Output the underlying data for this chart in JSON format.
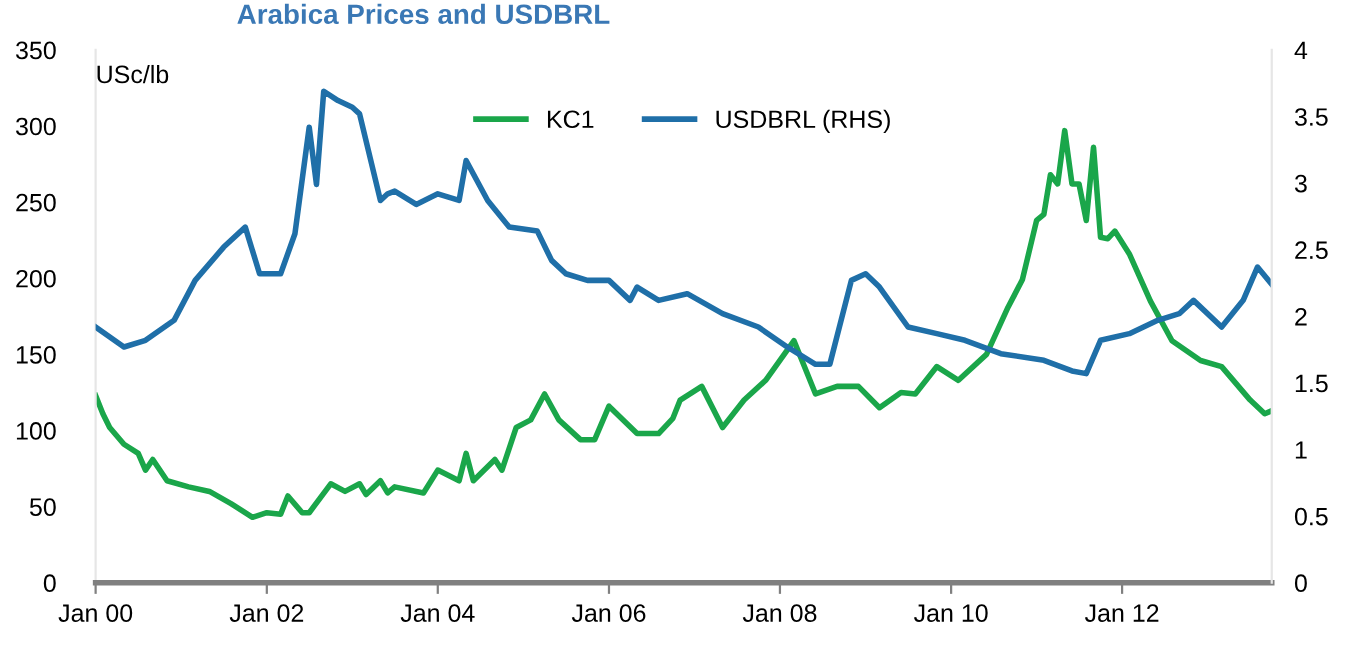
{
  "chart_data": {
    "type": "line",
    "title": "Arabica Prices and USDBRL",
    "ylabel": "USc/lb",
    "xlim": [
      "2000-01",
      "2013-10"
    ],
    "xticks": [
      {
        "value": "2000-01",
        "label": "Jan 00"
      },
      {
        "value": "2002-01",
        "label": "Jan 02"
      },
      {
        "value": "2004-01",
        "label": "Jan 04"
      },
      {
        "value": "2006-01",
        "label": "Jan 06"
      },
      {
        "value": "2008-01",
        "label": "Jan 08"
      },
      {
        "value": "2010-01",
        "label": "Jan 10"
      },
      {
        "value": "2012-01",
        "label": "Jan 12"
      }
    ],
    "ylim": [
      0,
      350
    ],
    "yticks": [
      0,
      50,
      100,
      150,
      200,
      250,
      300,
      350
    ],
    "y2lim": [
      0,
      4
    ],
    "y2ticks": [
      0,
      0.5,
      1,
      1.5,
      2,
      2.5,
      3,
      3.5,
      4
    ],
    "grid": false,
    "legend": "top",
    "marker": "none",
    "line_style": "solid",
    "series": [
      {
        "name": "KC1",
        "color": "#1aa64a",
        "x": [
          "2000-01",
          "2000-02",
          "2000-03",
          "2000-05",
          "2000-07",
          "2000-08",
          "2000-09",
          "2000-11",
          "2001-02",
          "2001-05",
          "2001-08",
          "2001-11",
          "2002-01",
          "2002-03",
          "2002-04",
          "2002-06",
          "2002-07",
          "2002-10",
          "2002-12",
          "2003-02",
          "2003-03",
          "2003-05",
          "2003-06",
          "2003-07",
          "2003-11",
          "2004-01",
          "2004-04",
          "2004-05",
          "2004-06",
          "2004-09",
          "2004-10",
          "2004-12",
          "2005-02",
          "2005-04",
          "2005-06",
          "2005-09",
          "2005-11",
          "2006-01",
          "2006-05",
          "2006-08",
          "2006-10",
          "2006-11",
          "2007-02",
          "2007-05",
          "2007-08",
          "2007-11",
          "2008-03",
          "2008-06",
          "2008-09",
          "2008-12",
          "2009-03",
          "2009-06",
          "2009-08",
          "2009-11",
          "2010-02",
          "2010-06",
          "2010-09",
          "2010-11",
          "2011-01",
          "2011-02",
          "2011-03",
          "2011-04",
          "2011-05",
          "2011-06",
          "2011-07",
          "2011-08",
          "2011-09",
          "2011-10",
          "2011-11",
          "2011-12",
          "2012-02",
          "2012-05",
          "2012-08",
          "2012-12",
          "2013-03",
          "2013-07",
          "2013-09",
          "2013-10"
        ],
        "values": [
          123,
          111,
          102,
          91,
          85,
          74,
          81,
          67,
          63,
          60,
          52,
          43,
          46,
          45,
          57,
          46,
          46,
          65,
          60,
          65,
          58,
          67,
          59,
          63,
          59,
          74,
          67,
          85,
          67,
          81,
          74,
          102,
          107,
          124,
          107,
          94,
          94,
          116,
          98,
          98,
          108,
          120,
          129,
          102,
          120,
          133,
          159,
          124,
          129,
          129,
          115,
          125,
          124,
          142,
          133,
          150,
          181,
          199,
          238,
          242,
          268,
          262,
          297,
          262,
          262,
          238,
          286,
          227,
          226,
          231,
          216,
          185,
          159,
          146,
          142,
          120,
          111,
          113
        ]
      },
      {
        "name": "USDBRL (RHS)",
        "color": "#1f6fa8",
        "axis": "y2",
        "x": [
          "2000-01",
          "2000-05",
          "2000-08",
          "2000-12",
          "2001-03",
          "2001-07",
          "2001-10",
          "2001-12",
          "2002-03",
          "2002-05",
          "2002-07",
          "2002-08",
          "2002-09",
          "2002-11",
          "2003-01",
          "2003-02",
          "2003-05",
          "2003-06",
          "2003-07",
          "2003-10",
          "2004-01",
          "2004-04",
          "2004-05",
          "2004-08",
          "2004-11",
          "2005-03",
          "2005-05",
          "2005-07",
          "2005-10",
          "2006-01",
          "2006-04",
          "2006-05",
          "2006-08",
          "2006-12",
          "2007-05",
          "2007-10",
          "2008-02",
          "2008-06",
          "2008-08",
          "2008-11",
          "2009-01",
          "2009-03",
          "2009-07",
          "2009-11",
          "2010-03",
          "2010-08",
          "2011-02",
          "2011-06",
          "2011-08",
          "2011-10",
          "2012-02",
          "2012-06",
          "2012-09",
          "2012-11",
          "2013-03",
          "2013-06",
          "2013-08",
          "2013-10"
        ],
        "values": [
          1.92,
          1.77,
          1.82,
          1.97,
          2.27,
          2.52,
          2.67,
          2.32,
          2.32,
          2.62,
          3.42,
          2.99,
          3.69,
          3.62,
          3.57,
          3.52,
          2.87,
          2.92,
          2.94,
          2.84,
          2.92,
          2.87,
          3.17,
          2.87,
          2.67,
          2.64,
          2.42,
          2.32,
          2.27,
          2.27,
          2.12,
          2.22,
          2.12,
          2.17,
          2.02,
          1.92,
          1.77,
          1.64,
          1.64,
          2.27,
          2.32,
          2.22,
          1.92,
          1.87,
          1.82,
          1.72,
          1.67,
          1.59,
          1.57,
          1.82,
          1.87,
          1.97,
          2.02,
          2.12,
          1.92,
          2.12,
          2.37,
          2.24
        ]
      }
    ]
  }
}
